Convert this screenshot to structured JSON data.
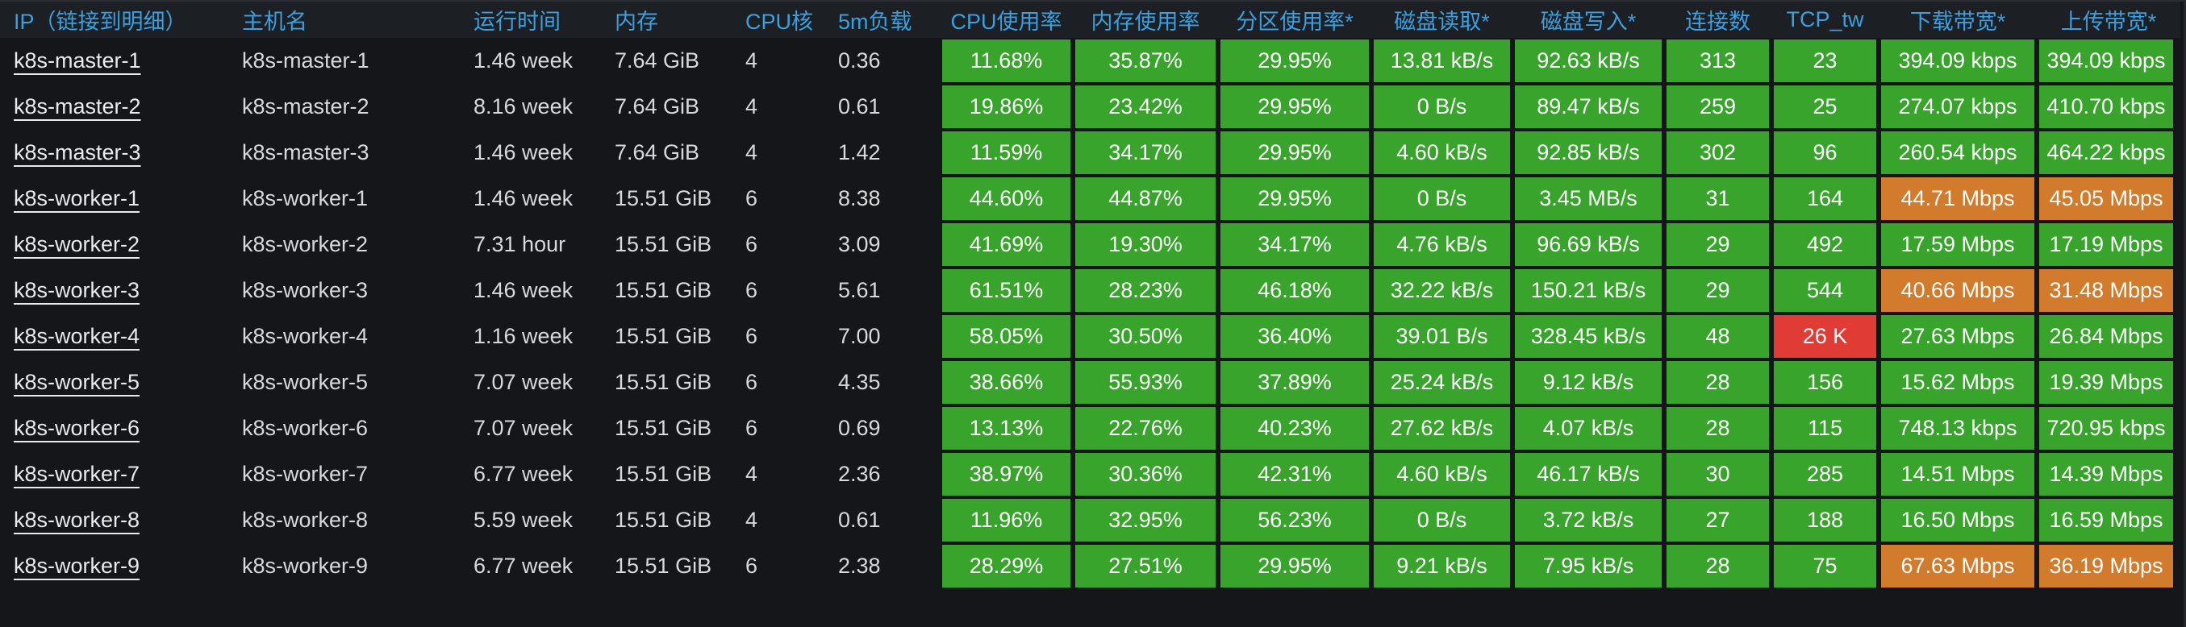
{
  "panel": {
    "type": "table"
  },
  "colors": {
    "green": "#38a42c",
    "orange": "#d37b2d",
    "red": "#e03b35",
    "header_text": "#3aa0e0",
    "link_text": "#e9eaeb",
    "body_text": "#d8d9da",
    "header_bg": "#1c1f24",
    "row_bg": "#14161a"
  },
  "table": {
    "columns": [
      {
        "key": "ip",
        "label": "IP（链接到明细）",
        "kind": "link"
      },
      {
        "key": "hostname",
        "label": "主机名",
        "kind": "text"
      },
      {
        "key": "uptime",
        "label": "运行时间",
        "kind": "text"
      },
      {
        "key": "memory",
        "label": "内存",
        "kind": "text"
      },
      {
        "key": "cpu_cores",
        "label": "CPU核",
        "kind": "text"
      },
      {
        "key": "load_5m",
        "label": "5m负载",
        "kind": "text"
      },
      {
        "key": "cpu_usage",
        "label": "CPU使用率",
        "kind": "metric"
      },
      {
        "key": "mem_usage",
        "label": "内存使用率",
        "kind": "metric"
      },
      {
        "key": "partition_usage",
        "label": "分区使用率*",
        "kind": "metric"
      },
      {
        "key": "disk_read",
        "label": "磁盘读取*",
        "kind": "metric"
      },
      {
        "key": "disk_write",
        "label": "磁盘写入*",
        "kind": "metric"
      },
      {
        "key": "connections",
        "label": "连接数",
        "kind": "metric"
      },
      {
        "key": "tcp_tw",
        "label": "TCP_tw",
        "kind": "metric"
      },
      {
        "key": "download_bw",
        "label": "下载带宽*",
        "kind": "metric"
      },
      {
        "key": "upload_bw",
        "label": "上传带宽*",
        "kind": "metric"
      }
    ],
    "rows": [
      {
        "ip": "k8s-master-1",
        "hostname": "k8s-master-1",
        "uptime": "1.46 week",
        "memory": "7.64 GiB",
        "cpu_cores": "4",
        "load_5m": "0.36",
        "cpu_usage": {
          "text": "11.68%",
          "level": "green"
        },
        "mem_usage": {
          "text": "35.87%",
          "level": "green"
        },
        "partition_usage": {
          "text": "29.95%",
          "level": "green"
        },
        "disk_read": {
          "text": "13.81 kB/s",
          "level": "green"
        },
        "disk_write": {
          "text": "92.63 kB/s",
          "level": "green"
        },
        "connections": {
          "text": "313",
          "level": "green"
        },
        "tcp_tw": {
          "text": "23",
          "level": "green"
        },
        "download_bw": {
          "text": "394.09 kbps",
          "level": "green"
        },
        "upload_bw": {
          "text": "394.09 kbps",
          "level": "green"
        }
      },
      {
        "ip": "k8s-master-2",
        "hostname": "k8s-master-2",
        "uptime": "8.16 week",
        "memory": "7.64 GiB",
        "cpu_cores": "4",
        "load_5m": "0.61",
        "cpu_usage": {
          "text": "19.86%",
          "level": "green"
        },
        "mem_usage": {
          "text": "23.42%",
          "level": "green"
        },
        "partition_usage": {
          "text": "29.95%",
          "level": "green"
        },
        "disk_read": {
          "text": "0 B/s",
          "level": "green"
        },
        "disk_write": {
          "text": "89.47 kB/s",
          "level": "green"
        },
        "connections": {
          "text": "259",
          "level": "green"
        },
        "tcp_tw": {
          "text": "25",
          "level": "green"
        },
        "download_bw": {
          "text": "274.07 kbps",
          "level": "green"
        },
        "upload_bw": {
          "text": "410.70 kbps",
          "level": "green"
        }
      },
      {
        "ip": "k8s-master-3",
        "hostname": "k8s-master-3",
        "uptime": "1.46 week",
        "memory": "7.64 GiB",
        "cpu_cores": "4",
        "load_5m": "1.42",
        "cpu_usage": {
          "text": "11.59%",
          "level": "green"
        },
        "mem_usage": {
          "text": "34.17%",
          "level": "green"
        },
        "partition_usage": {
          "text": "29.95%",
          "level": "green"
        },
        "disk_read": {
          "text": "4.60 kB/s",
          "level": "green"
        },
        "disk_write": {
          "text": "92.85 kB/s",
          "level": "green"
        },
        "connections": {
          "text": "302",
          "level": "green"
        },
        "tcp_tw": {
          "text": "96",
          "level": "green"
        },
        "download_bw": {
          "text": "260.54 kbps",
          "level": "green"
        },
        "upload_bw": {
          "text": "464.22 kbps",
          "level": "green"
        }
      },
      {
        "ip": "k8s-worker-1",
        "hostname": "k8s-worker-1",
        "uptime": "1.46 week",
        "memory": "15.51 GiB",
        "cpu_cores": "6",
        "load_5m": "8.38",
        "cpu_usage": {
          "text": "44.60%",
          "level": "green"
        },
        "mem_usage": {
          "text": "44.87%",
          "level": "green"
        },
        "partition_usage": {
          "text": "29.95%",
          "level": "green"
        },
        "disk_read": {
          "text": "0 B/s",
          "level": "green"
        },
        "disk_write": {
          "text": "3.45 MB/s",
          "level": "green"
        },
        "connections": {
          "text": "31",
          "level": "green"
        },
        "tcp_tw": {
          "text": "164",
          "level": "green"
        },
        "download_bw": {
          "text": "44.71 Mbps",
          "level": "orange"
        },
        "upload_bw": {
          "text": "45.05 Mbps",
          "level": "orange"
        }
      },
      {
        "ip": "k8s-worker-2",
        "hostname": "k8s-worker-2",
        "uptime": "7.31 hour",
        "memory": "15.51 GiB",
        "cpu_cores": "6",
        "load_5m": "3.09",
        "cpu_usage": {
          "text": "41.69%",
          "level": "green"
        },
        "mem_usage": {
          "text": "19.30%",
          "level": "green"
        },
        "partition_usage": {
          "text": "34.17%",
          "level": "green"
        },
        "disk_read": {
          "text": "4.76 kB/s",
          "level": "green"
        },
        "disk_write": {
          "text": "96.69 kB/s",
          "level": "green"
        },
        "connections": {
          "text": "29",
          "level": "green"
        },
        "tcp_tw": {
          "text": "492",
          "level": "green"
        },
        "download_bw": {
          "text": "17.59 Mbps",
          "level": "green"
        },
        "upload_bw": {
          "text": "17.19 Mbps",
          "level": "green"
        }
      },
      {
        "ip": "k8s-worker-3",
        "hostname": "k8s-worker-3",
        "uptime": "1.46 week",
        "memory": "15.51 GiB",
        "cpu_cores": "6",
        "load_5m": "5.61",
        "cpu_usage": {
          "text": "61.51%",
          "level": "green"
        },
        "mem_usage": {
          "text": "28.23%",
          "level": "green"
        },
        "partition_usage": {
          "text": "46.18%",
          "level": "green"
        },
        "disk_read": {
          "text": "32.22 kB/s",
          "level": "green"
        },
        "disk_write": {
          "text": "150.21 kB/s",
          "level": "green"
        },
        "connections": {
          "text": "29",
          "level": "green"
        },
        "tcp_tw": {
          "text": "544",
          "level": "green"
        },
        "download_bw": {
          "text": "40.66 Mbps",
          "level": "orange"
        },
        "upload_bw": {
          "text": "31.48 Mbps",
          "level": "orange"
        }
      },
      {
        "ip": "k8s-worker-4",
        "hostname": "k8s-worker-4",
        "uptime": "1.16 week",
        "memory": "15.51 GiB",
        "cpu_cores": "6",
        "load_5m": "7.00",
        "cpu_usage": {
          "text": "58.05%",
          "level": "green"
        },
        "mem_usage": {
          "text": "30.50%",
          "level": "green"
        },
        "partition_usage": {
          "text": "36.40%",
          "level": "green"
        },
        "disk_read": {
          "text": "39.01 B/s",
          "level": "green"
        },
        "disk_write": {
          "text": "328.45 kB/s",
          "level": "green"
        },
        "connections": {
          "text": "48",
          "level": "green"
        },
        "tcp_tw": {
          "text": "26 K",
          "level": "red"
        },
        "download_bw": {
          "text": "27.63 Mbps",
          "level": "green"
        },
        "upload_bw": {
          "text": "26.84 Mbps",
          "level": "green"
        }
      },
      {
        "ip": "k8s-worker-5",
        "hostname": "k8s-worker-5",
        "uptime": "7.07 week",
        "memory": "15.51 GiB",
        "cpu_cores": "6",
        "load_5m": "4.35",
        "cpu_usage": {
          "text": "38.66%",
          "level": "green"
        },
        "mem_usage": {
          "text": "55.93%",
          "level": "green"
        },
        "partition_usage": {
          "text": "37.89%",
          "level": "green"
        },
        "disk_read": {
          "text": "25.24 kB/s",
          "level": "green"
        },
        "disk_write": {
          "text": "9.12 kB/s",
          "level": "green"
        },
        "connections": {
          "text": "28",
          "level": "green"
        },
        "tcp_tw": {
          "text": "156",
          "level": "green"
        },
        "download_bw": {
          "text": "15.62 Mbps",
          "level": "green"
        },
        "upload_bw": {
          "text": "19.39 Mbps",
          "level": "green"
        }
      },
      {
        "ip": "k8s-worker-6",
        "hostname": "k8s-worker-6",
        "uptime": "7.07 week",
        "memory": "15.51 GiB",
        "cpu_cores": "6",
        "load_5m": "0.69",
        "cpu_usage": {
          "text": "13.13%",
          "level": "green"
        },
        "mem_usage": {
          "text": "22.76%",
          "level": "green"
        },
        "partition_usage": {
          "text": "40.23%",
          "level": "green"
        },
        "disk_read": {
          "text": "27.62 kB/s",
          "level": "green"
        },
        "disk_write": {
          "text": "4.07 kB/s",
          "level": "green"
        },
        "connections": {
          "text": "28",
          "level": "green"
        },
        "tcp_tw": {
          "text": "115",
          "level": "green"
        },
        "download_bw": {
          "text": "748.13 kbps",
          "level": "green"
        },
        "upload_bw": {
          "text": "720.95 kbps",
          "level": "green"
        }
      },
      {
        "ip": "k8s-worker-7",
        "hostname": "k8s-worker-7",
        "uptime": "6.77 week",
        "memory": "15.51 GiB",
        "cpu_cores": "4",
        "load_5m": "2.36",
        "cpu_usage": {
          "text": "38.97%",
          "level": "green"
        },
        "mem_usage": {
          "text": "30.36%",
          "level": "green"
        },
        "partition_usage": {
          "text": "42.31%",
          "level": "green"
        },
        "disk_read": {
          "text": "4.60 kB/s",
          "level": "green"
        },
        "disk_write": {
          "text": "46.17 kB/s",
          "level": "green"
        },
        "connections": {
          "text": "30",
          "level": "green"
        },
        "tcp_tw": {
          "text": "285",
          "level": "green"
        },
        "download_bw": {
          "text": "14.51 Mbps",
          "level": "green"
        },
        "upload_bw": {
          "text": "14.39 Mbps",
          "level": "green"
        }
      },
      {
        "ip": "k8s-worker-8",
        "hostname": "k8s-worker-8",
        "uptime": "5.59 week",
        "memory": "15.51 GiB",
        "cpu_cores": "4",
        "load_5m": "0.61",
        "cpu_usage": {
          "text": "11.96%",
          "level": "green"
        },
        "mem_usage": {
          "text": "32.95%",
          "level": "green"
        },
        "partition_usage": {
          "text": "56.23%",
          "level": "green"
        },
        "disk_read": {
          "text": "0 B/s",
          "level": "green"
        },
        "disk_write": {
          "text": "3.72 kB/s",
          "level": "green"
        },
        "connections": {
          "text": "27",
          "level": "green"
        },
        "tcp_tw": {
          "text": "188",
          "level": "green"
        },
        "download_bw": {
          "text": "16.50 Mbps",
          "level": "green"
        },
        "upload_bw": {
          "text": "16.59 Mbps",
          "level": "green"
        }
      },
      {
        "ip": "k8s-worker-9",
        "hostname": "k8s-worker-9",
        "uptime": "6.77 week",
        "memory": "15.51 GiB",
        "cpu_cores": "6",
        "load_5m": "2.38",
        "cpu_usage": {
          "text": "28.29%",
          "level": "green"
        },
        "mem_usage": {
          "text": "27.51%",
          "level": "green"
        },
        "partition_usage": {
          "text": "29.95%",
          "level": "green"
        },
        "disk_read": {
          "text": "9.21 kB/s",
          "level": "green"
        },
        "disk_write": {
          "text": "7.95 kB/s",
          "level": "green"
        },
        "connections": {
          "text": "28",
          "level": "green"
        },
        "tcp_tw": {
          "text": "75",
          "level": "green"
        },
        "download_bw": {
          "text": "67.63 Mbps",
          "level": "orange"
        },
        "upload_bw": {
          "text": "36.19 Mbps",
          "level": "orange"
        }
      }
    ]
  }
}
